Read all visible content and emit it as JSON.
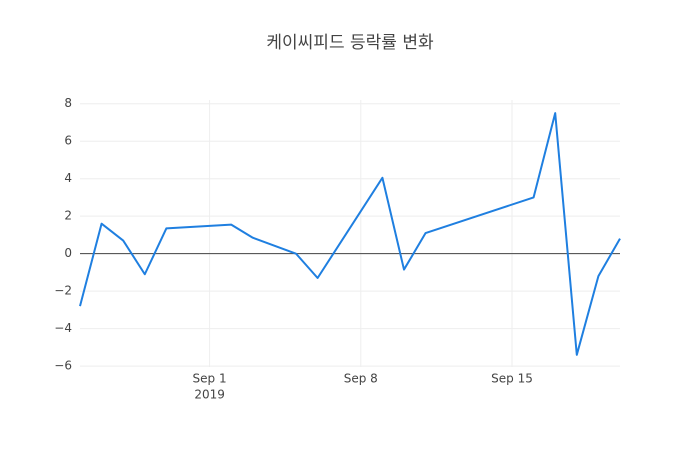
{
  "chart_data": {
    "type": "line",
    "title": "케이씨피드 등락률 변화",
    "x": [
      "2019-08-26",
      "2019-08-27",
      "2019-08-28",
      "2019-08-29",
      "2019-08-30",
      "2019-09-02",
      "2019-09-03",
      "2019-09-05",
      "2019-09-06",
      "2019-09-09",
      "2019-09-10",
      "2019-09-11",
      "2019-09-16",
      "2019-09-17",
      "2019-09-18",
      "2019-09-19",
      "2019-09-20"
    ],
    "series": [
      {
        "color": "#1f7fe0",
        "values": [
          -2.8,
          1.6,
          0.7,
          -1.1,
          1.35,
          1.55,
          0.85,
          0.0,
          -1.3,
          4.05,
          -0.85,
          1.1,
          3.0,
          7.5,
          -5.4,
          -1.2,
          0.8
        ]
      }
    ],
    "xlim": [
      "2019-08-26",
      "2019-09-20"
    ],
    "xticks": [
      {
        "value": "2019-09-01",
        "label": "Sep 1",
        "sublabel": "2019"
      },
      {
        "value": "2019-09-08",
        "label": "Sep 8"
      },
      {
        "value": "2019-09-15",
        "label": "Sep 15"
      }
    ],
    "ylim": [
      -6.05,
      8.2
    ],
    "yticks": [
      {
        "value": -6,
        "label": "−6"
      },
      {
        "value": -4,
        "label": "−4"
      },
      {
        "value": -2,
        "label": "−2"
      },
      0,
      2,
      4,
      6,
      8
    ],
    "grid": true,
    "zeroline": true
  }
}
